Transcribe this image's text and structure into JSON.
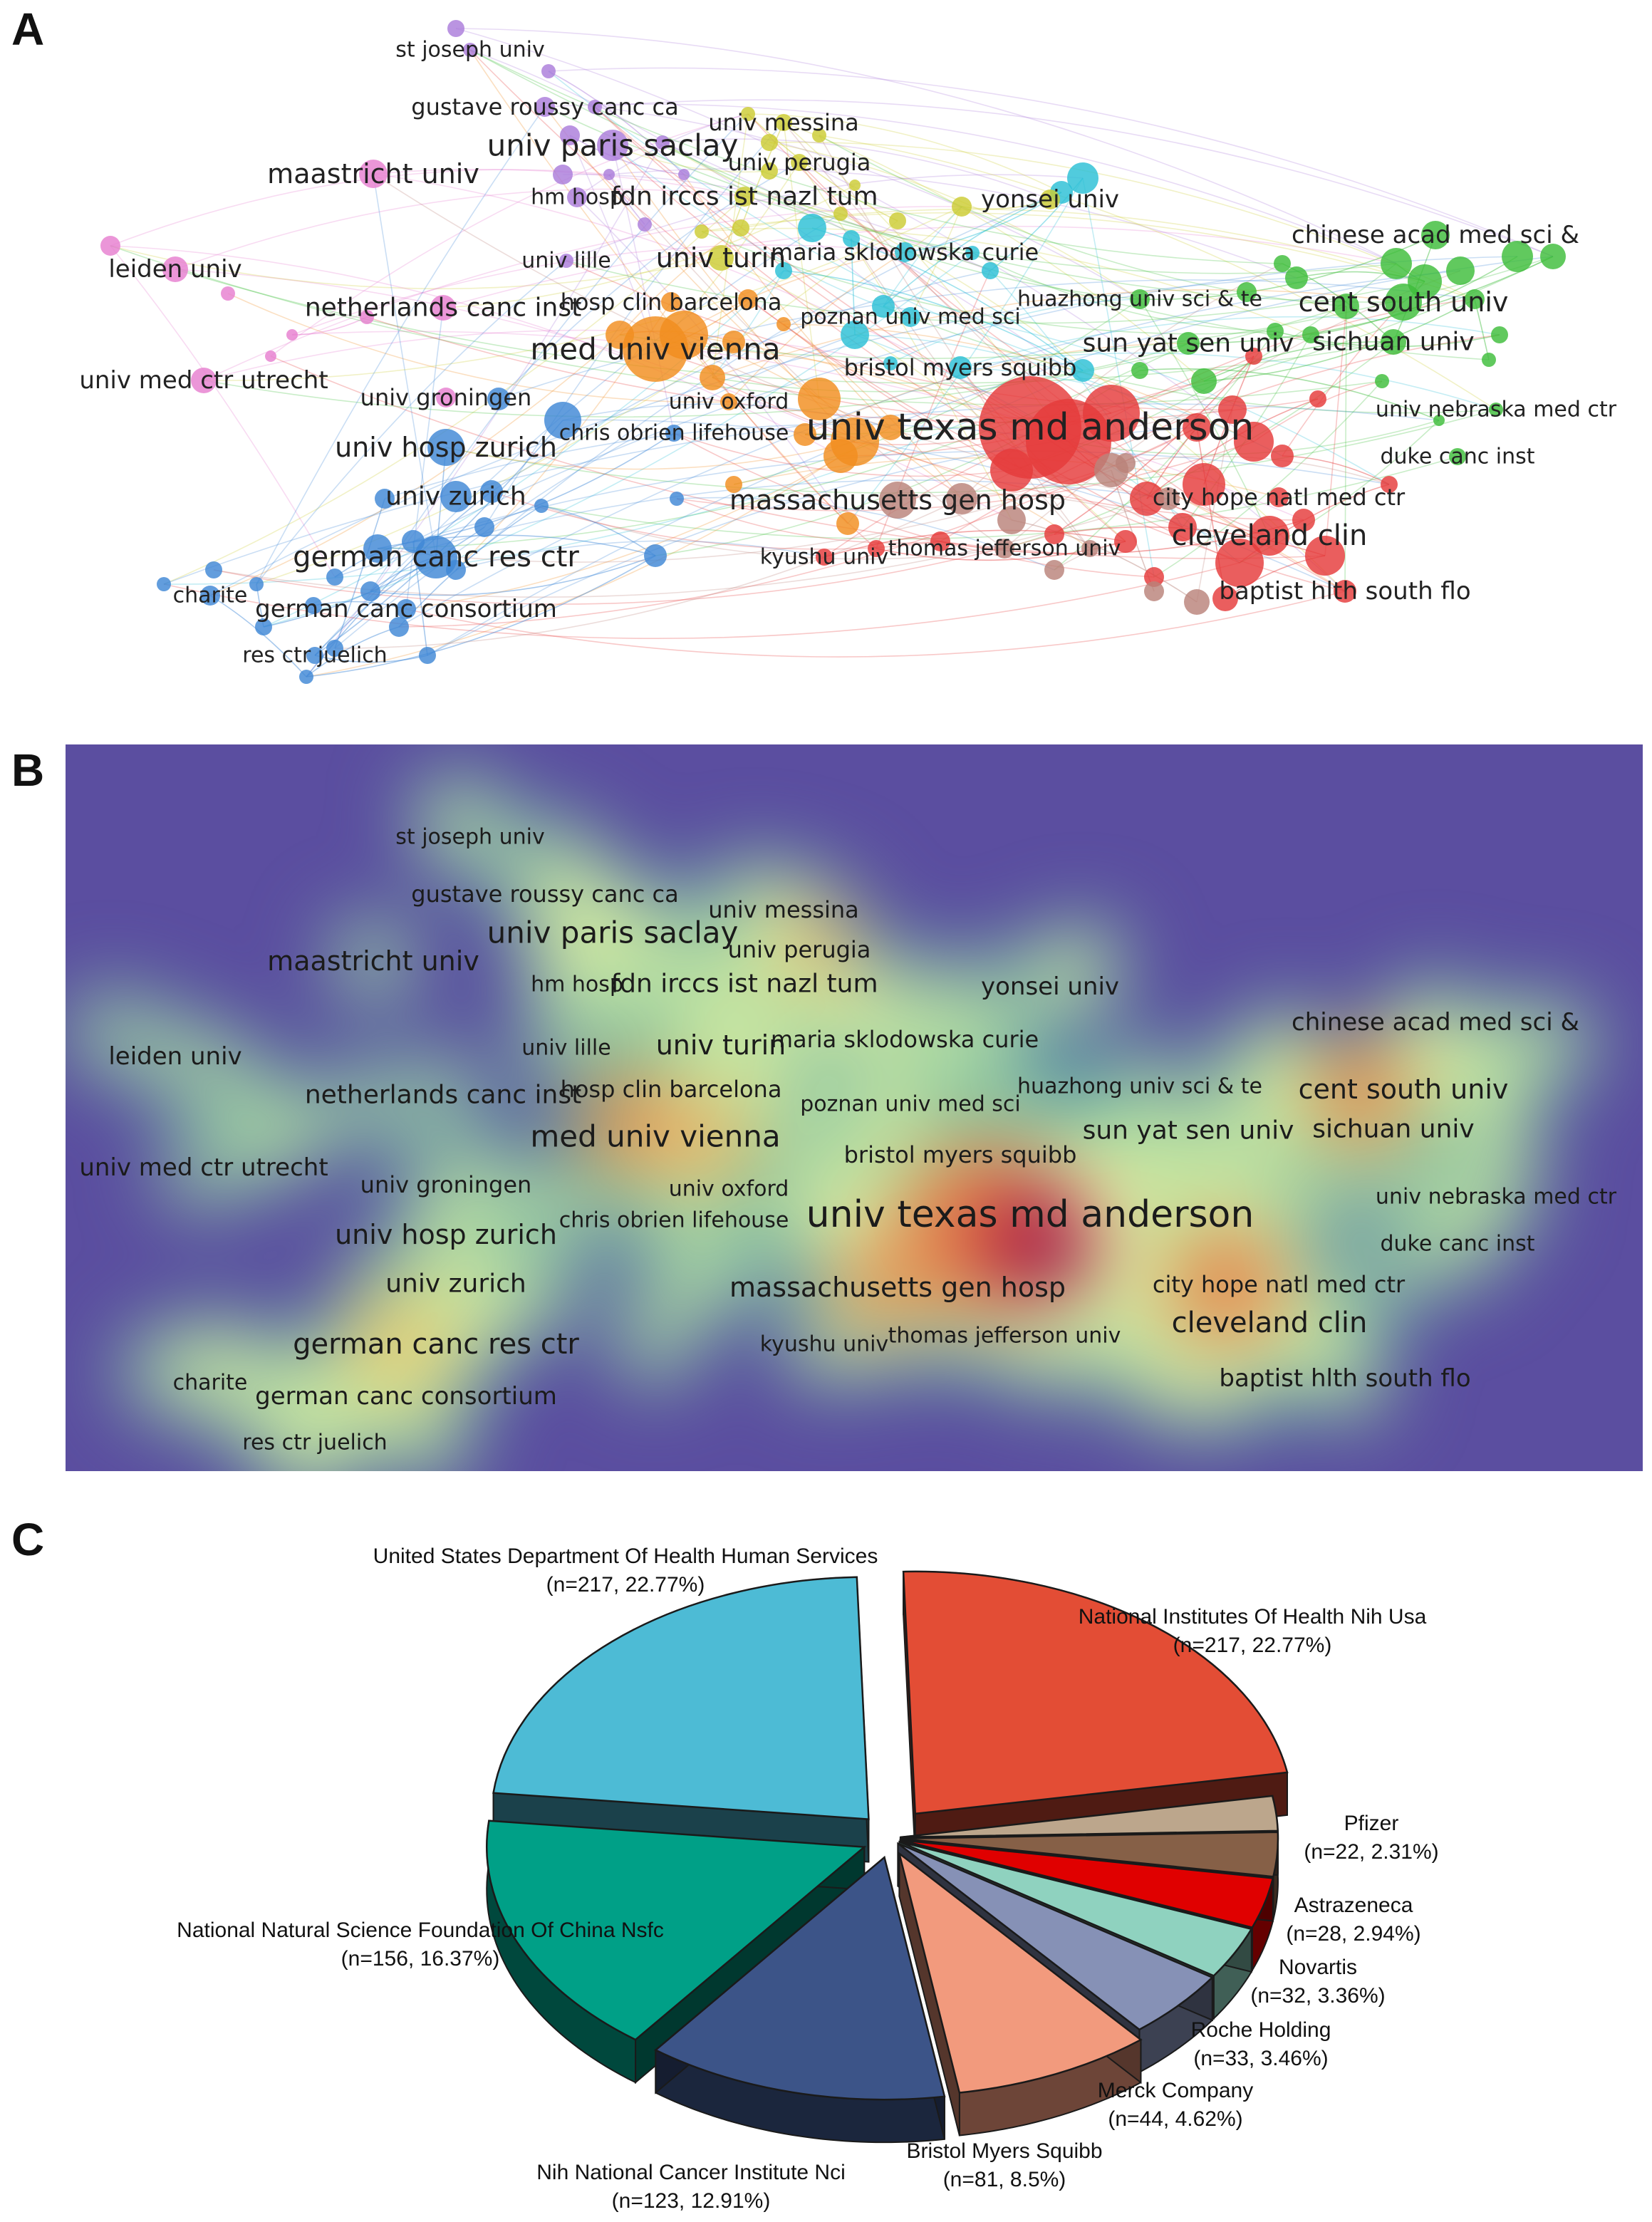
{
  "panels": {
    "a": "A",
    "b": "B",
    "c": "C"
  },
  "network": {
    "colors": {
      "pink": "#e77fd0",
      "purple": "#ab7ddb",
      "yellow": "#cccc33",
      "cyan": "#2bbfd6",
      "orange": "#f28d1f",
      "green": "#3ebd3b",
      "red": "#e53b3b",
      "blue": "#3f87d6",
      "brown": "#b9827a"
    },
    "labels": [
      {
        "id": "st-joseph-univ",
        "text": "st joseph univ",
        "color": "purple"
      },
      {
        "id": "gustave-roussy-canc-ca",
        "text": "gustave roussy canc ca",
        "color": "purple"
      },
      {
        "id": "univ-messina",
        "text": "univ messina",
        "color": "yellow"
      },
      {
        "id": "univ-paris-saclay",
        "text": "univ paris saclay",
        "color": "purple"
      },
      {
        "id": "univ-perugia",
        "text": "univ perugia",
        "color": "yellow"
      },
      {
        "id": "maastricht-univ",
        "text": "maastricht univ",
        "color": "pink"
      },
      {
        "id": "hm-hosp",
        "text": "hm hosp",
        "color": "purple"
      },
      {
        "id": "fdn-irccs-ist-nazl-tum",
        "text": "fdn irccs ist nazl tum",
        "color": "yellow"
      },
      {
        "id": "yonsei-univ",
        "text": "yonsei univ",
        "color": "yellow"
      },
      {
        "id": "chinese-acad-med-sci",
        "text": "chinese acad med sci &",
        "color": "green"
      },
      {
        "id": "leiden-univ",
        "text": "leiden univ",
        "color": "pink"
      },
      {
        "id": "univ-lille",
        "text": "univ lille",
        "color": "purple"
      },
      {
        "id": "univ-turin",
        "text": "univ turin",
        "color": "yellow"
      },
      {
        "id": "maria-sklodowska-curie",
        "text": "maria sklodowska curie",
        "color": "cyan"
      },
      {
        "id": "huazhong-univ-sci-te",
        "text": "huazhong univ sci & te",
        "color": "green"
      },
      {
        "id": "cent-south-univ",
        "text": "cent south univ",
        "color": "green"
      },
      {
        "id": "netherlands-canc-inst",
        "text": "netherlands canc inst",
        "color": "pink"
      },
      {
        "id": "hosp-clin-barcelona",
        "text": "hosp clin barcelona",
        "color": "orange"
      },
      {
        "id": "poznan-univ-med-sci",
        "text": "poznan univ med sci",
        "color": "cyan"
      },
      {
        "id": "med-univ-vienna",
        "text": "med univ vienna",
        "color": "orange"
      },
      {
        "id": "sun-yat-sen-univ",
        "text": "sun yat sen univ",
        "color": "green"
      },
      {
        "id": "sichuan-univ",
        "text": "sichuan univ",
        "color": "green"
      },
      {
        "id": "bristol-myers-squibb",
        "text": "bristol myers squibb",
        "color": "cyan"
      },
      {
        "id": "univ-med-ctr-utrecht",
        "text": "univ med ctr utrecht",
        "color": "pink"
      },
      {
        "id": "univ-groningen",
        "text": "univ groningen",
        "color": "pink"
      },
      {
        "id": "univ-oxford",
        "text": "univ oxford",
        "color": "orange"
      },
      {
        "id": "univ-nebraska-med-ctr",
        "text": "univ nebraska med ctr",
        "color": "green"
      },
      {
        "id": "univ-texas-md-anderson",
        "text": "univ texas md anderson",
        "color": "red"
      },
      {
        "id": "chris-obrien-lifehouse",
        "text": "chris obrien lifehouse",
        "color": "blue"
      },
      {
        "id": "univ-hosp-zurich",
        "text": "univ hosp zurich",
        "color": "blue"
      },
      {
        "id": "duke-canc-inst",
        "text": "duke canc inst",
        "color": "green"
      },
      {
        "id": "univ-zurich",
        "text": "univ zurich",
        "color": "blue"
      },
      {
        "id": "massachusetts-gen-hosp",
        "text": "massachusetts gen hosp",
        "color": "brown"
      },
      {
        "id": "city-hope-natl-med-ctr",
        "text": "city hope natl med ctr",
        "color": "red"
      },
      {
        "id": "cleveland-clin",
        "text": "cleveland clin",
        "color": "red"
      },
      {
        "id": "german-canc-res-ctr",
        "text": "german canc res ctr",
        "color": "blue"
      },
      {
        "id": "kyushu-univ",
        "text": "kyushu univ",
        "color": "red"
      },
      {
        "id": "thomas-jefferson-univ",
        "text": "thomas jefferson univ",
        "color": "brown"
      },
      {
        "id": "charite",
        "text": "charite",
        "color": "blue"
      },
      {
        "id": "baptist-hlth-south-flo",
        "text": "baptist hlth south flo",
        "color": "red"
      },
      {
        "id": "german-canc-consortium",
        "text": "german canc consortium",
        "color": "blue"
      },
      {
        "id": "res-ctr-juelich",
        "text": "res ctr juelich",
        "color": "blue"
      }
    ]
  },
  "chart_data": {
    "type": "pie",
    "style": "3d-exploded",
    "title": "",
    "total_approx": 953,
    "slices": [
      {
        "name": "National Institutes Of Health Nih Usa",
        "n": 217,
        "percent": 22.77,
        "label": "(n=217, 22.77%)",
        "color": "#e34d35"
      },
      {
        "name": "Pfizer",
        "n": 22,
        "percent": 2.31,
        "label": "(n=22, 2.31%)",
        "color": "#bca68c"
      },
      {
        "name": "Astrazeneca",
        "n": 28,
        "percent": 2.94,
        "label": "(n=28, 2.94%)",
        "color": "#866047"
      },
      {
        "name": "Novartis",
        "n": 32,
        "percent": 3.36,
        "label": "(n=32, 3.36%)",
        "color": "#e00000"
      },
      {
        "name": "Roche Holding",
        "n": 33,
        "percent": 3.46,
        "label": "(n=33, 3.46%)",
        "color": "#8fd2bf"
      },
      {
        "name": "Merck Company",
        "n": 44,
        "percent": 4.62,
        "label": "(n=44, 4.62%)",
        "color": "#8691b6"
      },
      {
        "name": "Bristol Myers Squibb",
        "n": 81,
        "percent": 8.5,
        "label": "(n=81, 8.5%)",
        "color": "#f29a7d"
      },
      {
        "name": "Nih National Cancer Institute Nci",
        "n": 123,
        "percent": 12.91,
        "label": "(n=123, 12.91%)",
        "color": "#3c5488"
      },
      {
        "name": "National Natural Science Foundation Of China Nsfc",
        "n": 156,
        "percent": 16.37,
        "label": "(n=156, 16.37%)",
        "color": "#00a087"
      },
      {
        "name": "United States Department Of Health Human Services",
        "n": 217,
        "percent": 22.77,
        "label": "(n=217, 22.77%)",
        "color": "#4dbbd5"
      }
    ]
  }
}
